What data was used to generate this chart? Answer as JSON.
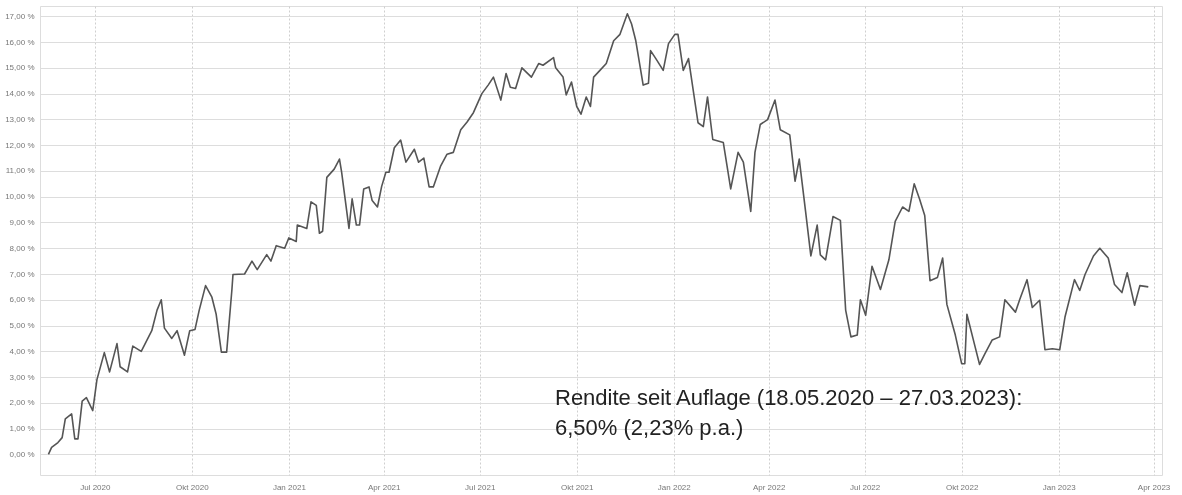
{
  "chart_data": {
    "type": "line",
    "x": [
      "2020-05-18",
      "2020-05-21",
      "2020-05-27",
      "2020-05-31",
      "2020-06-03",
      "2020-06-09",
      "2020-06-12",
      "2020-06-15",
      "2020-06-19",
      "2020-06-23",
      "2020-06-29",
      "2020-07-03",
      "2020-07-10",
      "2020-07-15",
      "2020-07-22",
      "2020-07-25",
      "2020-08-01",
      "2020-08-06",
      "2020-08-14",
      "2020-08-24",
      "2020-08-29",
      "2020-09-02",
      "2020-09-05",
      "2020-09-12",
      "2020-09-17",
      "2020-09-24",
      "2020-09-29",
      "2020-10-04",
      "2020-10-08",
      "2020-10-14",
      "2020-10-20",
      "2020-10-24",
      "2020-10-29",
      "2020-11-03",
      "2020-11-08",
      "2020-11-09",
      "2020-11-20",
      "2020-11-27",
      "2020-12-02",
      "2020-12-11",
      "2020-12-15",
      "2020-12-20",
      "2020-12-28",
      "2021-01-01",
      "2021-01-08",
      "2021-01-09",
      "2021-01-18",
      "2021-01-22",
      "2021-01-27",
      "2021-01-30",
      "2021-02-02",
      "2021-02-06",
      "2021-02-13",
      "2021-02-18",
      "2021-02-20",
      "2021-02-27",
      "2021-03-02",
      "2021-03-06",
      "2021-03-09",
      "2021-03-13",
      "2021-03-18",
      "2021-03-21",
      "2021-03-26",
      "2021-03-30",
      "2021-04-03",
      "2021-04-06",
      "2021-04-11",
      "2021-04-17",
      "2021-04-22",
      "2021-04-30",
      "2021-05-04",
      "2021-05-09",
      "2021-05-14",
      "2021-05-18",
      "2021-05-25",
      "2021-05-31",
      "2021-06-06",
      "2021-06-13",
      "2021-06-19",
      "2021-06-25",
      "2021-07-03",
      "2021-07-09",
      "2021-07-14",
      "2021-07-21",
      "2021-07-26",
      "2021-07-30",
      "2021-08-04",
      "2021-08-10",
      "2021-08-19",
      "2021-08-26",
      "2021-08-30",
      "2021-09-09",
      "2021-09-11",
      "2021-09-18",
      "2021-09-21",
      "2021-09-26",
      "2021-10-01",
      "2021-10-05",
      "2021-10-10",
      "2021-10-14",
      "2021-10-17",
      "2021-10-23",
      "2021-10-29",
      "2021-11-05",
      "2021-11-11",
      "2021-11-18",
      "2021-11-22",
      "2021-11-26",
      "2021-12-03",
      "2021-12-08",
      "2021-12-10",
      "2021-12-15",
      "2021-12-22",
      "2021-12-27",
      "2022-01-02",
      "2022-01-05",
      "2022-01-10",
      "2022-01-15",
      "2022-01-24",
      "2022-01-29",
      "2022-02-02",
      "2022-02-07",
      "2022-02-17",
      "2022-02-24",
      "2022-03-03",
      "2022-03-08",
      "2022-03-15",
      "2022-03-19",
      "2022-03-24",
      "2022-03-31",
      "2022-04-07",
      "2022-04-12",
      "2022-04-21",
      "2022-04-26",
      "2022-04-30",
      "2022-05-06",
      "2022-05-11",
      "2022-05-17",
      "2022-05-20",
      "2022-05-25",
      "2022-06-01",
      "2022-06-08",
      "2022-06-13",
      "2022-06-18",
      "2022-06-24",
      "2022-06-27",
      "2022-07-02",
      "2022-07-08",
      "2022-07-16",
      "2022-07-24",
      "2022-07-30",
      "2022-08-06",
      "2022-08-12",
      "2022-08-17",
      "2022-08-22",
      "2022-08-27",
      "2022-09-01",
      "2022-09-08",
      "2022-09-13",
      "2022-09-17",
      "2022-09-25",
      "2022-10-01",
      "2022-10-04",
      "2022-10-06",
      "2022-10-13",
      "2022-10-18",
      "2022-10-23",
      "2022-10-30",
      "2022-11-06",
      "2022-11-11",
      "2022-11-21",
      "2022-11-25",
      "2022-12-02",
      "2022-12-07",
      "2022-12-14",
      "2022-12-19",
      "2022-12-26",
      "2023-01-02",
      "2023-01-07",
      "2023-01-16",
      "2023-01-21",
      "2023-01-26",
      "2023-02-03",
      "2023-02-09",
      "2023-02-17",
      "2023-02-23",
      "2023-03-02",
      "2023-03-07",
      "2023-03-14",
      "2023-03-19",
      "2023-03-27"
    ],
    "series": [
      {
        "color": "#555555",
        "values": [
          0,
          0.27,
          0.46,
          0.65,
          1.38,
          1.57,
          0.6,
          0.6,
          2.07,
          2.2,
          1.7,
          2.9,
          3.95,
          3.2,
          4.3,
          3.4,
          3.2,
          4.2,
          4.0,
          4.8,
          5.6,
          6.0,
          4.9,
          4.5,
          4.8,
          3.85,
          4.8,
          4.85,
          5.6,
          6.55,
          6.1,
          5.45,
          3.97,
          3.97,
          6.4,
          6.98,
          7.0,
          7.5,
          7.17,
          7.75,
          7.5,
          8.1,
          8.0,
          8.4,
          8.26,
          8.9,
          8.77,
          9.8,
          9.66,
          8.58,
          8.66,
          10.75,
          11.07,
          11.46,
          10.96,
          8.77,
          9.92,
          8.9,
          8.9,
          10.3,
          10.38,
          9.85,
          9.6,
          10.4,
          10.95,
          10.95,
          11.9,
          12.2,
          11.34,
          11.84,
          11.34,
          11.5,
          10.38,
          10.38,
          11.2,
          11.65,
          11.72,
          12.6,
          12.9,
          13.26,
          14.0,
          14.33,
          14.64,
          13.75,
          14.78,
          14.25,
          14.2,
          15.0,
          14.64,
          15.17,
          15.1,
          15.4,
          15.0,
          14.64,
          13.95,
          14.45,
          13.5,
          13.2,
          13.87,
          13.5,
          14.64,
          14.9,
          15.17,
          16.05,
          16.3,
          17.1,
          16.7,
          16.05,
          14.33,
          14.4,
          15.67,
          15.36,
          14.9,
          15.94,
          16.3,
          16.3,
          14.9,
          15.36,
          12.87,
          12.72,
          13.87,
          12.22,
          12.1,
          10.3,
          11.72,
          11.34,
          9.43,
          11.72,
          12.8,
          12.99,
          13.75,
          12.6,
          12.4,
          10.6,
          11.46,
          9.43,
          7.7,
          8.9,
          7.74,
          7.55,
          9.23,
          9.08,
          5.6,
          4.56,
          4.63,
          6.0,
          5.4,
          7.3,
          6.4,
          7.55,
          9.04,
          9.6,
          9.43,
          10.5,
          9.92,
          9.27,
          6.74,
          6.86,
          7.62,
          5.82,
          4.63,
          3.52,
          3.52,
          5.44,
          4.3,
          3.49,
          3.9,
          4.44,
          4.56,
          6.0,
          5.52,
          6.0,
          6.78,
          5.7,
          5.98,
          4.06,
          4.1,
          4.06,
          5.33,
          6.78,
          6.36,
          6.98,
          7.7,
          8.0,
          7.62,
          6.59,
          6.28,
          7.05,
          5.79,
          6.55,
          6.5
        ]
      }
    ],
    "xlim": [
      "2020-05-10",
      "2023-04-09"
    ],
    "xticks": [
      {
        "value": "2020-07-01",
        "label": "Jul 2020"
      },
      {
        "value": "2020-10-01",
        "label": "Okt 2020"
      },
      {
        "value": "2021-01-01",
        "label": "Jan 2021"
      },
      {
        "value": "2021-04-01",
        "label": "Apr 2021"
      },
      {
        "value": "2021-07-01",
        "label": "Jul 2021"
      },
      {
        "value": "2021-10-01",
        "label": "Okt 2021"
      },
      {
        "value": "2022-01-01",
        "label": "Jan 2022"
      },
      {
        "value": "2022-04-01",
        "label": "Apr 2022"
      },
      {
        "value": "2022-07-01",
        "label": "Jul 2022"
      },
      {
        "value": "2022-10-01",
        "label": "Okt 2022"
      },
      {
        "value": "2023-01-01",
        "label": "Jan 2023"
      },
      {
        "value": "2023-04-01",
        "label": "Apr 2023"
      }
    ],
    "ylim": [
      -0.8,
      17.4
    ],
    "yticks": [
      {
        "value": 0,
        "label": "0,00 %"
      },
      {
        "value": 1,
        "label": "1,00 %"
      },
      {
        "value": 2,
        "label": "2,00 %"
      },
      {
        "value": 3,
        "label": "3,00 %"
      },
      {
        "value": 4,
        "label": "4,00 %"
      },
      {
        "value": 5,
        "label": "5,00 %"
      },
      {
        "value": 6,
        "label": "6,00 %"
      },
      {
        "value": 7,
        "label": "7,00 %"
      },
      {
        "value": 8,
        "label": "8,00 %"
      },
      {
        "value": 9,
        "label": "9,00 %"
      },
      {
        "value": 10,
        "label": "10,00 %"
      },
      {
        "value": 11,
        "label": "11,00 %"
      },
      {
        "value": 12,
        "label": "12,00 %"
      },
      {
        "value": 13,
        "label": "13,00 %"
      },
      {
        "value": 14,
        "label": "14,00 %"
      },
      {
        "value": 15,
        "label": "15,00 %"
      },
      {
        "value": 16,
        "label": "16,00 %"
      },
      {
        "value": 17,
        "label": "17,00 %"
      }
    ],
    "grid": true,
    "annotations": [
      "Rendite seit Auflage (18.05.2020 – 27.03.2023):",
      "6,50% (2,23% p.a.)"
    ]
  }
}
